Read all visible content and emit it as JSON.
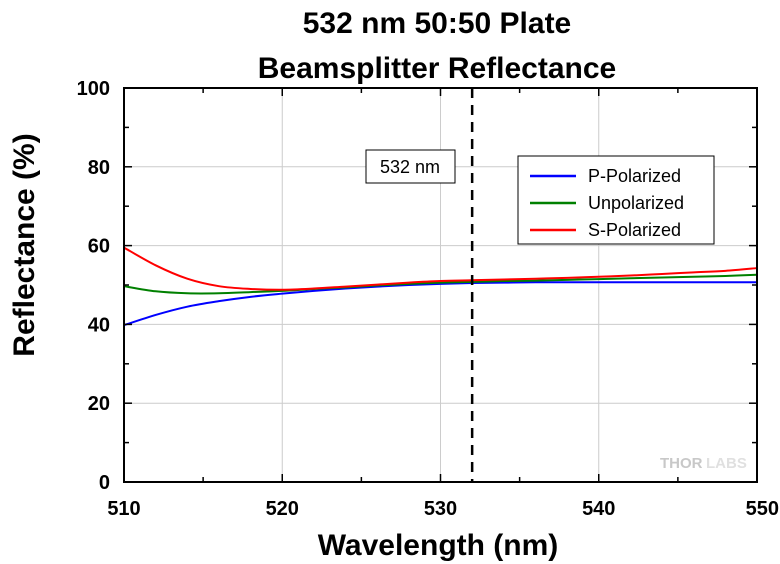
{
  "chart_data": {
    "type": "line",
    "title_lines": [
      "532 nm 50:50 Plate",
      "Beamsplitter Reflectance"
    ],
    "xlabel": "Wavelength (nm)",
    "ylabel": "Reflectance (%)",
    "xlim": [
      510,
      550
    ],
    "ylim": [
      0,
      100
    ],
    "x_ticks": [
      510,
      520,
      530,
      540,
      550
    ],
    "y_ticks": [
      0,
      20,
      40,
      60,
      80,
      100
    ],
    "grid": true,
    "legend_position": "top-right",
    "annotation": {
      "text": "532 nm",
      "x": 532,
      "style": "dashed-vertical-line"
    },
    "watermark": {
      "part1": "THOR",
      "part2": "LABS"
    },
    "x": [
      510,
      512,
      514,
      516,
      518,
      520,
      522,
      524,
      526,
      528,
      530,
      532,
      534,
      536,
      538,
      540,
      542,
      544,
      546,
      548,
      550
    ],
    "series": [
      {
        "name": "P-Polarized",
        "color": "#0000ff",
        "values": [
          39.8,
          42.4,
          44.5,
          45.9,
          47.0,
          47.8,
          48.5,
          49.1,
          49.6,
          50.0,
          50.3,
          50.5,
          50.6,
          50.7,
          50.7,
          50.7,
          50.7,
          50.7,
          50.7,
          50.7,
          50.7
        ]
      },
      {
        "name": "Unpolarized",
        "color": "#008000",
        "values": [
          49.7,
          48.4,
          47.9,
          47.9,
          48.2,
          48.5,
          49.0,
          49.4,
          49.9,
          50.3,
          50.6,
          50.8,
          51.0,
          51.1,
          51.3,
          51.5,
          51.7,
          51.9,
          52.1,
          52.3,
          52.6
        ]
      },
      {
        "name": "S-Polarized",
        "color": "#ff0000",
        "values": [
          59.5,
          55.0,
          51.6,
          49.7,
          49.0,
          48.8,
          49.1,
          49.6,
          50.1,
          50.6,
          51.0,
          51.2,
          51.4,
          51.6,
          51.8,
          52.1,
          52.4,
          52.8,
          53.2,
          53.6,
          54.3
        ]
      }
    ]
  }
}
